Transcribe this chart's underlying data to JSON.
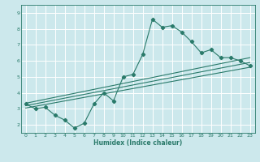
{
  "title": "",
  "xlabel": "Humidex (Indice chaleur)",
  "ylabel": "",
  "background_color": "#cce8ec",
  "grid_color": "#ffffff",
  "line_color": "#2a7a6a",
  "xlim": [
    -0.5,
    23.5
  ],
  "ylim": [
    1.5,
    9.5
  ],
  "xticks": [
    0,
    1,
    2,
    3,
    4,
    5,
    6,
    7,
    8,
    9,
    10,
    11,
    12,
    13,
    14,
    15,
    16,
    17,
    18,
    19,
    20,
    21,
    22,
    23
  ],
  "yticks": [
    2,
    3,
    4,
    5,
    6,
    7,
    8,
    9
  ],
  "series": [
    [
      0,
      3.3
    ],
    [
      1,
      3.0
    ],
    [
      2,
      3.1
    ],
    [
      3,
      2.6
    ],
    [
      4,
      2.3
    ],
    [
      5,
      1.8
    ],
    [
      6,
      2.1
    ],
    [
      7,
      3.3
    ],
    [
      8,
      4.0
    ],
    [
      9,
      3.5
    ],
    [
      10,
      5.0
    ],
    [
      11,
      5.15
    ],
    [
      12,
      6.4
    ],
    [
      13,
      8.6
    ],
    [
      14,
      8.1
    ],
    [
      15,
      8.2
    ],
    [
      16,
      7.8
    ],
    [
      17,
      7.2
    ],
    [
      18,
      6.5
    ],
    [
      19,
      6.7
    ],
    [
      20,
      6.2
    ],
    [
      21,
      6.2
    ],
    [
      22,
      6.0
    ],
    [
      23,
      5.7
    ]
  ],
  "linear1": [
    [
      0,
      3.35
    ],
    [
      23,
      6.2
    ]
  ],
  "linear2": [
    [
      0,
      3.2
    ],
    [
      23,
      5.9
    ]
  ],
  "linear3": [
    [
      0,
      3.05
    ],
    [
      23,
      5.6
    ]
  ]
}
